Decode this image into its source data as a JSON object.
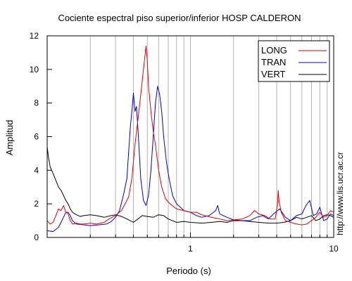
{
  "chart_data": {
    "type": "line",
    "title": "Cociente espectral piso superior/inferior  HOSP CALDERON",
    "xlabel": "Periodo (s)",
    "ylabel": "Amplitud",
    "xscale": "log",
    "xlim": [
      0.1,
      10
    ],
    "ylim": [
      0,
      12
    ],
    "grid": "vertical log minor gridlines",
    "legend_position": "top-right",
    "x_ticks": [
      {
        "value": 1,
        "label": "1"
      },
      {
        "value": 10,
        "label": "10"
      }
    ],
    "y_ticks": [
      {
        "value": 0,
        "label": "0"
      },
      {
        "value": 2,
        "label": "2"
      },
      {
        "value": 4,
        "label": "4"
      },
      {
        "value": 6,
        "label": "6"
      },
      {
        "value": 8,
        "label": "8"
      },
      {
        "value": 10,
        "label": "10"
      },
      {
        "value": 12,
        "label": "12"
      }
    ],
    "watermark": "http://www.lis.ucr.ac.cr",
    "series": [
      {
        "name": "LONG",
        "color": "#e00000",
        "points": [
          [
            0.1,
            1.0
          ],
          [
            0.105,
            0.8
          ],
          [
            0.11,
            0.9
          ],
          [
            0.115,
            1.3
          ],
          [
            0.12,
            1.7
          ],
          [
            0.125,
            1.6
          ],
          [
            0.13,
            1.9
          ],
          [
            0.135,
            1.5
          ],
          [
            0.14,
            1.4
          ],
          [
            0.145,
            1.0
          ],
          [
            0.15,
            0.8
          ],
          [
            0.16,
            0.85
          ],
          [
            0.17,
            0.8
          ],
          [
            0.18,
            0.8
          ],
          [
            0.2,
            0.85
          ],
          [
            0.22,
            0.8
          ],
          [
            0.25,
            0.9
          ],
          [
            0.27,
            1.1
          ],
          [
            0.3,
            1.3
          ],
          [
            0.33,
            1.6
          ],
          [
            0.35,
            2.0
          ],
          [
            0.37,
            2.4
          ],
          [
            0.39,
            3.5
          ],
          [
            0.41,
            5.5
          ],
          [
            0.43,
            7.0
          ],
          [
            0.45,
            8.5
          ],
          [
            0.47,
            10.0
          ],
          [
            0.49,
            11.4
          ],
          [
            0.5,
            10.5
          ],
          [
            0.51,
            9.0
          ],
          [
            0.53,
            7.5
          ],
          [
            0.55,
            6.3
          ],
          [
            0.57,
            5.5
          ],
          [
            0.6,
            4.0
          ],
          [
            0.63,
            3.0
          ],
          [
            0.67,
            2.3
          ],
          [
            0.72,
            2.0
          ],
          [
            0.8,
            1.7
          ],
          [
            0.9,
            1.6
          ],
          [
            1.0,
            1.5
          ],
          [
            1.1,
            1.5
          ],
          [
            1.2,
            1.35
          ],
          [
            1.4,
            1.2
          ],
          [
            1.6,
            1.1
          ],
          [
            1.8,
            1.0
          ],
          [
            2.0,
            1.05
          ],
          [
            2.3,
            1.1
          ],
          [
            2.6,
            1.3
          ],
          [
            2.8,
            1.6
          ],
          [
            3.0,
            1.4
          ],
          [
            3.3,
            1.3
          ],
          [
            3.6,
            1.1
          ],
          [
            3.9,
            1.1
          ],
          [
            4.05,
            1.9
          ],
          [
            4.1,
            2.8
          ],
          [
            4.15,
            2.2
          ],
          [
            4.3,
            1.5
          ],
          [
            4.6,
            1.0
          ],
          [
            5.0,
            0.9
          ],
          [
            5.5,
            0.8
          ],
          [
            6.0,
            0.75
          ],
          [
            6.5,
            0.8
          ],
          [
            7.0,
            1.0
          ],
          [
            7.5,
            1.2
          ],
          [
            8.0,
            1.5
          ],
          [
            8.5,
            1.2
          ],
          [
            9.0,
            1.3
          ],
          [
            9.5,
            1.6
          ],
          [
            10.0,
            1.5
          ]
        ]
      },
      {
        "name": "TRAN",
        "color": "#0000d0",
        "points": [
          [
            0.1,
            0.4
          ],
          [
            0.11,
            0.35
          ],
          [
            0.12,
            0.6
          ],
          [
            0.125,
            0.9
          ],
          [
            0.13,
            1.2
          ],
          [
            0.135,
            1.5
          ],
          [
            0.14,
            1.5
          ],
          [
            0.145,
            1.3
          ],
          [
            0.15,
            1.0
          ],
          [
            0.16,
            0.8
          ],
          [
            0.18,
            0.75
          ],
          [
            0.2,
            0.7
          ],
          [
            0.23,
            0.75
          ],
          [
            0.26,
            0.8
          ],
          [
            0.28,
            0.95
          ],
          [
            0.3,
            1.2
          ],
          [
            0.32,
            1.6
          ],
          [
            0.34,
            2.5
          ],
          [
            0.36,
            3.5
          ],
          [
            0.37,
            5.0
          ],
          [
            0.38,
            6.5
          ],
          [
            0.39,
            7.5
          ],
          [
            0.4,
            8.6
          ],
          [
            0.41,
            7.5
          ],
          [
            0.42,
            7.8
          ],
          [
            0.43,
            6.5
          ],
          [
            0.44,
            5.0
          ],
          [
            0.45,
            3.5
          ],
          [
            0.47,
            2.2
          ],
          [
            0.49,
            1.9
          ],
          [
            0.51,
            2.5
          ],
          [
            0.53,
            4.0
          ],
          [
            0.55,
            6.0
          ],
          [
            0.57,
            8.0
          ],
          [
            0.59,
            9.0
          ],
          [
            0.61,
            8.5
          ],
          [
            0.63,
            7.5
          ],
          [
            0.65,
            6.0
          ],
          [
            0.68,
            4.5
          ],
          [
            0.71,
            3.5
          ],
          [
            0.75,
            2.5
          ],
          [
            0.8,
            2.0
          ],
          [
            0.85,
            1.8
          ],
          [
            0.9,
            1.6
          ],
          [
            1.0,
            1.5
          ],
          [
            1.1,
            1.3
          ],
          [
            1.2,
            1.2
          ],
          [
            1.35,
            1.3
          ],
          [
            1.5,
            1.6
          ],
          [
            1.55,
            1.9
          ],
          [
            1.6,
            1.4
          ],
          [
            1.8,
            1.2
          ],
          [
            2.0,
            1.05
          ],
          [
            2.3,
            1.0
          ],
          [
            2.6,
            1.0
          ],
          [
            2.9,
            1.2
          ],
          [
            3.2,
            1.3
          ],
          [
            3.5,
            1.1
          ],
          [
            3.8,
            1.4
          ],
          [
            4.2,
            1.7
          ],
          [
            4.6,
            1.2
          ],
          [
            5.0,
            1.0
          ],
          [
            5.5,
            1.3
          ],
          [
            6.0,
            1.4
          ],
          [
            6.4,
            1.9
          ],
          [
            6.8,
            2.2
          ],
          [
            7.2,
            1.3
          ],
          [
            7.6,
            1.4
          ],
          [
            8.0,
            1.8
          ],
          [
            8.5,
            1.0
          ],
          [
            9.0,
            1.1
          ],
          [
            9.5,
            1.4
          ],
          [
            10.0,
            1.3
          ]
        ]
      },
      {
        "name": "VERT",
        "color": "#000000",
        "points": [
          [
            0.1,
            5.4
          ],
          [
            0.102,
            4.8
          ],
          [
            0.105,
            4.2
          ],
          [
            0.11,
            3.8
          ],
          [
            0.115,
            3.4
          ],
          [
            0.12,
            3.0
          ],
          [
            0.125,
            2.8
          ],
          [
            0.13,
            2.5
          ],
          [
            0.135,
            2.2
          ],
          [
            0.14,
            2.0
          ],
          [
            0.145,
            1.7
          ],
          [
            0.15,
            1.5
          ],
          [
            0.16,
            1.35
          ],
          [
            0.17,
            1.25
          ],
          [
            0.18,
            1.3
          ],
          [
            0.2,
            1.35
          ],
          [
            0.22,
            1.3
          ],
          [
            0.25,
            1.2
          ],
          [
            0.28,
            1.3
          ],
          [
            0.3,
            1.35
          ],
          [
            0.33,
            1.25
          ],
          [
            0.36,
            1.1
          ],
          [
            0.4,
            0.9
          ],
          [
            0.43,
            1.1
          ],
          [
            0.46,
            1.3
          ],
          [
            0.5,
            1.25
          ],
          [
            0.55,
            1.2
          ],
          [
            0.6,
            1.35
          ],
          [
            0.65,
            1.3
          ],
          [
            0.7,
            1.1
          ],
          [
            0.8,
            0.9
          ],
          [
            0.9,
            0.95
          ],
          [
            1.0,
            0.9
          ],
          [
            1.2,
            0.85
          ],
          [
            1.4,
            0.9
          ],
          [
            1.6,
            0.95
          ],
          [
            1.8,
            0.9
          ],
          [
            2.0,
            1.0
          ],
          [
            2.3,
            1.0
          ],
          [
            2.6,
            0.95
          ],
          [
            3.0,
            0.9
          ],
          [
            3.5,
            0.85
          ],
          [
            4.0,
            0.85
          ],
          [
            4.5,
            0.9
          ],
          [
            5.0,
            1.0
          ],
          [
            5.5,
            1.2
          ],
          [
            6.0,
            1.1
          ],
          [
            6.5,
            1.2
          ],
          [
            7.0,
            1.3
          ],
          [
            7.5,
            1.0
          ],
          [
            8.0,
            1.1
          ],
          [
            8.5,
            1.3
          ],
          [
            9.0,
            1.35
          ],
          [
            9.5,
            1.3
          ],
          [
            10.0,
            1.2
          ]
        ]
      }
    ]
  }
}
